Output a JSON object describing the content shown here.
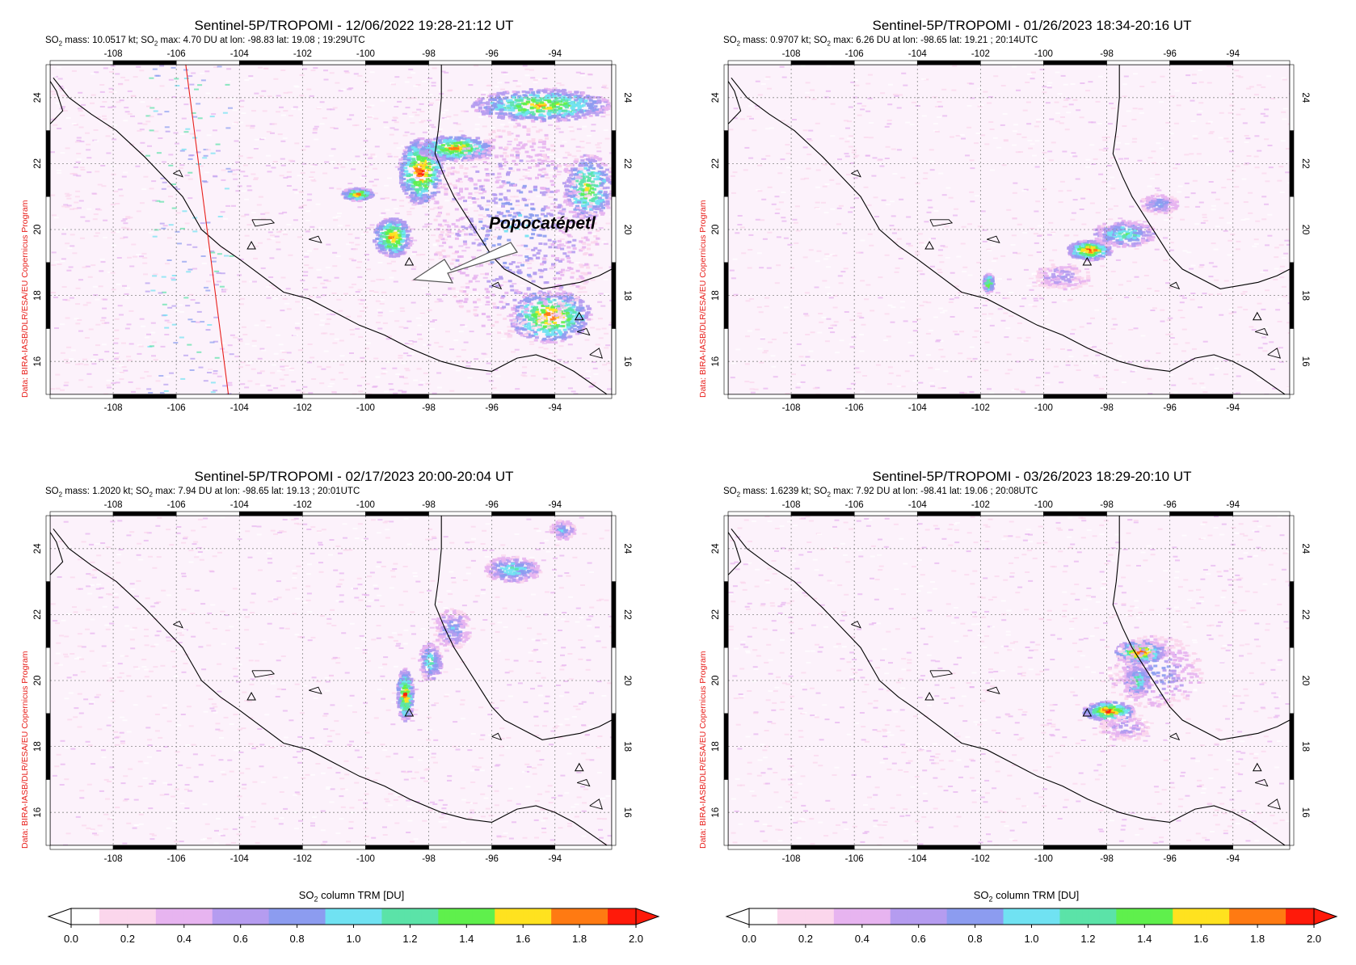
{
  "panels": [
    {
      "title": "Sentinel-5P/TROPOMI - 12/06/2022 19:28-21:12 UT",
      "info_prefix": "SO",
      "info_sub": "2",
      "info_rest": " mass: 10.0517 kt; SO",
      "info_sub2": "2",
      "info_rest2": " max: 4.70 DU at lon: -98.83 lat: 19.08 ; 19:29UTC",
      "so2_mass_kt": 10.0517,
      "so2_max_du": 4.7,
      "max_lon": -98.83,
      "max_lat": 19.08,
      "max_time": "19:29UTC",
      "annotation": "Popocatépetl"
    },
    {
      "title": "Sentinel-5P/TROPOMI - 01/26/2023 18:34-20:16 UT",
      "info_prefix": "SO",
      "info_sub": "2",
      "info_rest": " mass: 0.9707 kt; SO",
      "info_sub2": "2",
      "info_rest2": " max: 6.26 DU at lon: -98.65 lat: 19.21 ; 20:14UTC",
      "so2_mass_kt": 0.9707,
      "so2_max_du": 6.26,
      "max_lon": -98.65,
      "max_lat": 19.21,
      "max_time": "20:14UTC"
    },
    {
      "title": "Sentinel-5P/TROPOMI - 02/17/2023 20:00-20:04 UT",
      "info_prefix": "SO",
      "info_sub": "2",
      "info_rest": " mass: 1.2020 kt; SO",
      "info_sub2": "2",
      "info_rest2": " max: 7.94 DU at lon: -98.65 lat: 19.13 ; 20:01UTC",
      "so2_mass_kt": 1.202,
      "so2_max_du": 7.94,
      "max_lon": -98.65,
      "max_lat": 19.13,
      "max_time": "20:01UTC"
    },
    {
      "title": "Sentinel-5P/TROPOMI - 03/26/2023 18:29-20:10 UT",
      "info_prefix": "SO",
      "info_sub": "2",
      "info_rest": " mass: 1.6239 kt; SO",
      "info_sub2": "2",
      "info_rest2": " max: 7.92 DU at lon: -98.41 lat: 19.06 ; 20:08UTC",
      "so2_mass_kt": 1.6239,
      "so2_max_du": 7.92,
      "max_lon": -98.41,
      "max_lat": 19.06,
      "max_time": "20:08UTC"
    }
  ],
  "credit": "Data: BIRA-IASB/DLR/ESA/EU Copernicus Program",
  "axes": {
    "lon_ticks": [
      "-108",
      "-106",
      "-104",
      "-102",
      "-100",
      "-98",
      "-96",
      "-94"
    ],
    "lat_ticks": [
      "16",
      "18",
      "20",
      "22",
      "24"
    ],
    "lon_range": [
      -110,
      -92.2
    ],
    "lat_range": [
      15,
      25
    ]
  },
  "colorbar": {
    "title_prefix": "SO",
    "title_sub": "2",
    "title_rest": " column TRM [DU]",
    "ticks": [
      "0.0",
      "0.2",
      "0.4",
      "0.6",
      "0.8",
      "1.0",
      "1.2",
      "1.4",
      "1.6",
      "1.8",
      "2.0"
    ],
    "range": [
      0,
      2.0
    ],
    "colors": [
      "#ffffff",
      "#fbd6ec",
      "#e7b4f0",
      "#b59cf0",
      "#8c9cf0",
      "#70e2f2",
      "#5be3a8",
      "#5ff04c",
      "#ffe21f",
      "#ff7a12",
      "#ff1a0a"
    ]
  },
  "volcanoes": [
    {
      "lon": -98.62,
      "lat": 19.02
    },
    {
      "lon": -103.62,
      "lat": 19.51
    },
    {
      "lon": -93.23,
      "lat": 17.36
    }
  ]
}
